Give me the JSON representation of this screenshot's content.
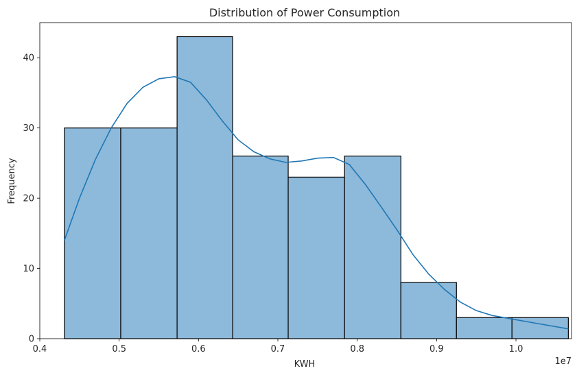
{
  "chart_data": {
    "type": "bar",
    "subtype": "histogram-with-kde",
    "title": "Distribution of Power Consumption",
    "xlabel": "KWH",
    "ylabel": "Frequency",
    "x_scale_label": "1e7",
    "xlim": [
      0.4,
      1.07
    ],
    "ylim": [
      0,
      45
    ],
    "x_ticks": [
      0.4,
      0.5,
      0.6,
      0.7,
      0.8,
      0.9,
      1.0
    ],
    "x_tick_labels": [
      "0.4",
      "0.5",
      "0.6",
      "0.7",
      "0.8",
      "0.9",
      "1.0"
    ],
    "y_ticks": [
      0,
      10,
      20,
      30,
      40
    ],
    "y_tick_labels": [
      "0",
      "10",
      "20",
      "30",
      "40"
    ],
    "grid": false,
    "bar_color": "#8db9da",
    "edge_color": "#000000",
    "line_color": "#1f77b4",
    "bins": [
      {
        "x0": 0.431,
        "x1": 0.502,
        "count": 30
      },
      {
        "x0": 0.502,
        "x1": 0.573,
        "count": 30
      },
      {
        "x0": 0.573,
        "x1": 0.643,
        "count": 43
      },
      {
        "x0": 0.643,
        "x1": 0.713,
        "count": 26
      },
      {
        "x0": 0.713,
        "x1": 0.784,
        "count": 23
      },
      {
        "x0": 0.784,
        "x1": 0.855,
        "count": 26
      },
      {
        "x0": 0.855,
        "x1": 0.925,
        "count": 8
      },
      {
        "x0": 0.925,
        "x1": 0.995,
        "count": 3
      },
      {
        "x0": 0.995,
        "x1": 1.066,
        "count": 3
      }
    ],
    "kde": {
      "x": [
        0.431,
        0.45,
        0.47,
        0.49,
        0.51,
        0.53,
        0.55,
        0.57,
        0.59,
        0.61,
        0.63,
        0.65,
        0.67,
        0.69,
        0.71,
        0.73,
        0.75,
        0.77,
        0.79,
        0.81,
        0.83,
        0.85,
        0.87,
        0.89,
        0.91,
        0.93,
        0.95,
        0.97,
        0.99,
        1.01,
        1.03,
        1.066
      ],
      "y": [
        14.0,
        20.0,
        25.5,
        30.0,
        33.5,
        35.8,
        37.0,
        37.3,
        36.5,
        34.0,
        31.0,
        28.3,
        26.6,
        25.6,
        25.1,
        25.3,
        25.7,
        25.8,
        24.8,
        22.0,
        18.8,
        15.5,
        12.0,
        9.2,
        7.0,
        5.2,
        4.0,
        3.3,
        2.9,
        2.5,
        2.1,
        1.4
      ]
    }
  }
}
